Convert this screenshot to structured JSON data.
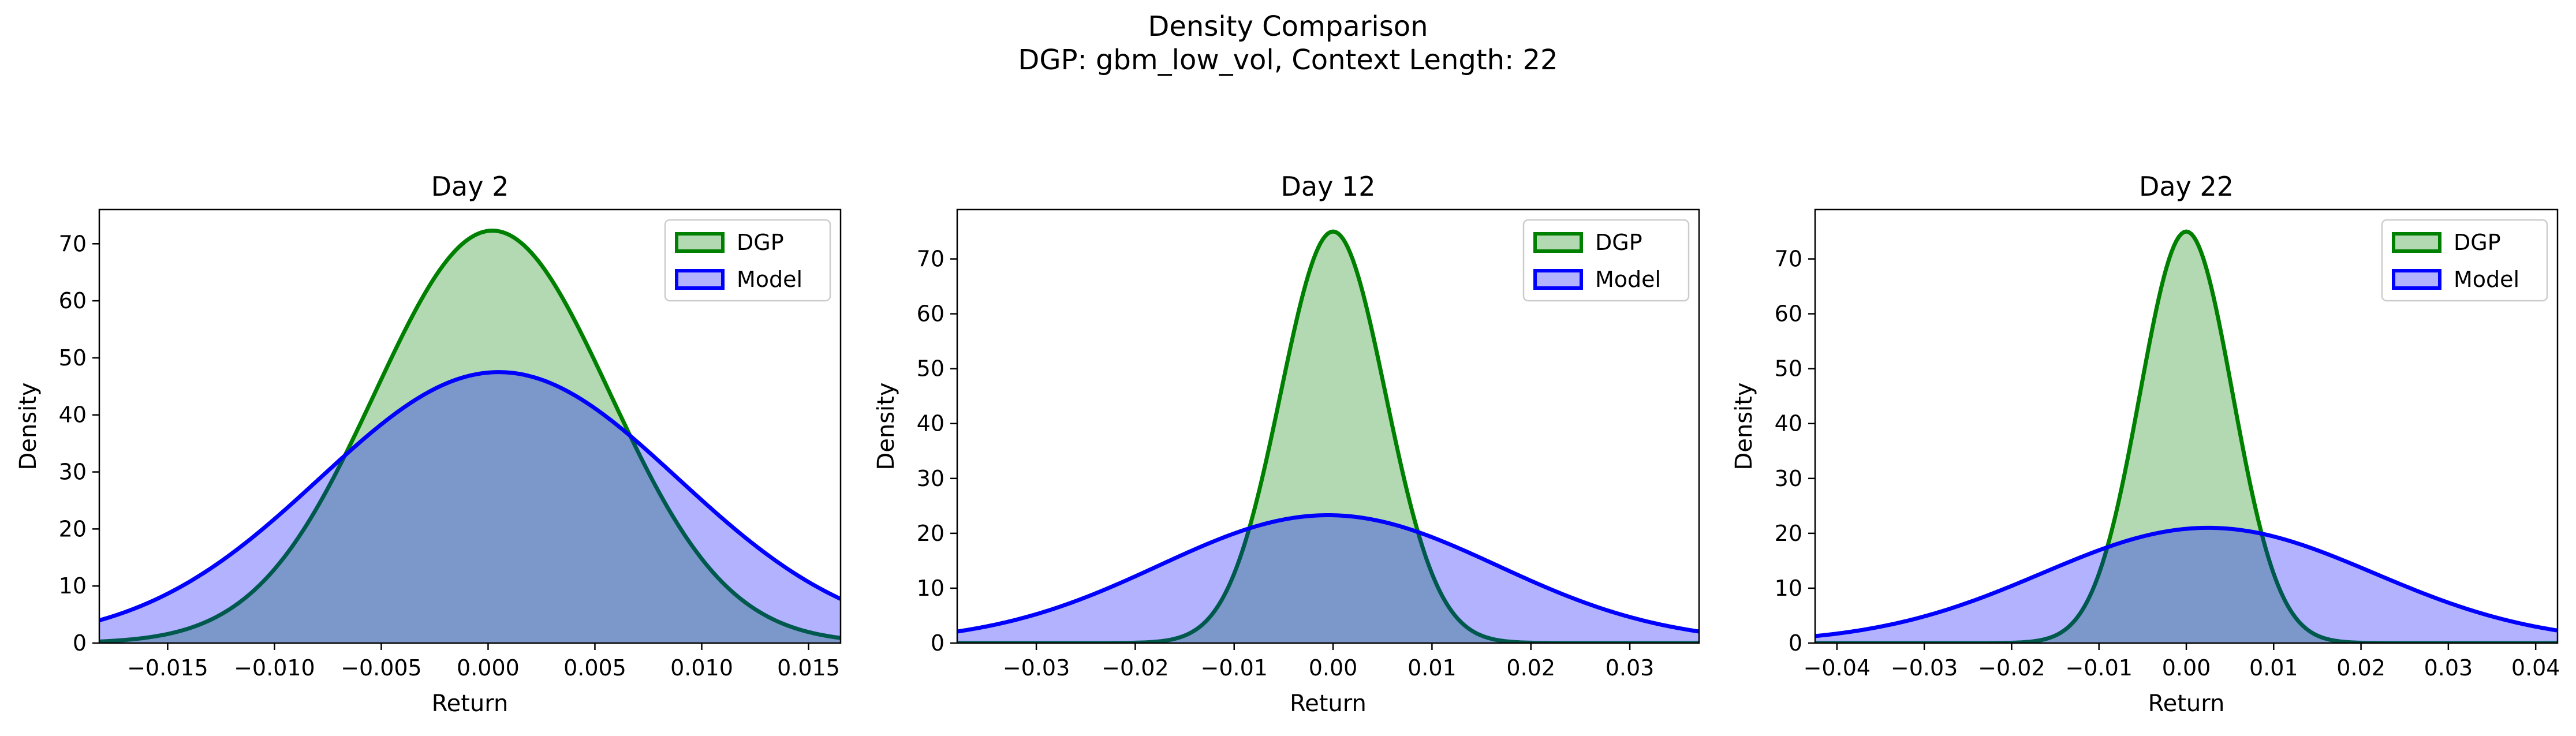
{
  "figure": {
    "title": "Density Comparison",
    "subtitle": "DGP: gbm_low_vol, Context Length: 22"
  },
  "colors": {
    "dgp_line": "#008000",
    "dgp_fill": "#008000",
    "model_line": "#0000ff",
    "model_fill": "#0000ff"
  },
  "chart_data": [
    {
      "type": "area",
      "title": "Day 2",
      "xlabel": "Return",
      "ylabel": "Density",
      "xlim": [
        -0.0182,
        0.0165
      ],
      "ylim": [
        0,
        76
      ],
      "xticks": [
        -0.015,
        -0.01,
        -0.005,
        0.0,
        0.005,
        0.01,
        0.015
      ],
      "xtick_labels": [
        "−0.015",
        "−0.010",
        "−0.005",
        "0.000",
        "0.005",
        "0.010",
        "0.015"
      ],
      "yticks": [
        0,
        10,
        20,
        30,
        40,
        50,
        60,
        70
      ],
      "ytick_labels": [
        "0",
        "10",
        "20",
        "30",
        "40",
        "50",
        "60",
        "70"
      ],
      "legend": {
        "placement": "top-right",
        "entries": [
          "DGP",
          "Model"
        ]
      },
      "grid": false,
      "series": [
        {
          "name": "DGP",
          "distribution": "normal",
          "mean": 0.0002,
          "sd": 0.0055,
          "peak_density": 72.3
        },
        {
          "name": "Model",
          "distribution": "normal",
          "mean": 0.0005,
          "sd": 0.0084,
          "peak_density": 47.5
        }
      ]
    },
    {
      "type": "area",
      "title": "Day 12",
      "xlabel": "Return",
      "ylabel": "Density",
      "xlim": [
        -0.038,
        0.037
      ],
      "ylim": [
        0,
        79
      ],
      "xticks": [
        -0.03,
        -0.02,
        -0.01,
        0.0,
        0.01,
        0.02,
        0.03
      ],
      "xtick_labels": [
        "−0.03",
        "−0.02",
        "−0.01",
        "0.00",
        "0.01",
        "0.02",
        "0.03"
      ],
      "yticks": [
        0,
        10,
        20,
        30,
        40,
        50,
        60,
        70
      ],
      "ytick_labels": [
        "0",
        "10",
        "20",
        "30",
        "40",
        "50",
        "60",
        "70"
      ],
      "legend": {
        "placement": "top-right",
        "entries": [
          "DGP",
          "Model"
        ]
      },
      "grid": false,
      "series": [
        {
          "name": "DGP",
          "distribution": "normal",
          "mean": 0.0,
          "sd": 0.0053,
          "peak_density": 75.0
        },
        {
          "name": "Model",
          "distribution": "normal",
          "mean": -0.0005,
          "sd": 0.0171,
          "peak_density": 23.3
        }
      ]
    },
    {
      "type": "area",
      "title": "Day 22",
      "xlabel": "Return",
      "ylabel": "Density",
      "xlim": [
        -0.0425,
        0.0425
      ],
      "ylim": [
        0,
        79
      ],
      "xticks": [
        -0.04,
        -0.03,
        -0.02,
        -0.01,
        0.0,
        0.01,
        0.02,
        0.03,
        0.04
      ],
      "xtick_labels": [
        "−0.04",
        "−0.03",
        "−0.02",
        "−0.01",
        "0.00",
        "0.01",
        "0.02",
        "0.03",
        "0.04"
      ],
      "yticks": [
        0,
        10,
        20,
        30,
        40,
        50,
        60,
        70
      ],
      "ytick_labels": [
        "0",
        "10",
        "20",
        "30",
        "40",
        "50",
        "60",
        "70"
      ],
      "legend": {
        "placement": "top-right",
        "entries": [
          "DGP",
          "Model"
        ]
      },
      "grid": false,
      "series": [
        {
          "name": "DGP",
          "distribution": "normal",
          "mean": 0.0,
          "sd": 0.0053,
          "peak_density": 75.0
        },
        {
          "name": "Model",
          "distribution": "normal",
          "mean": 0.0025,
          "sd": 0.019,
          "peak_density": 21.0
        }
      ]
    }
  ]
}
